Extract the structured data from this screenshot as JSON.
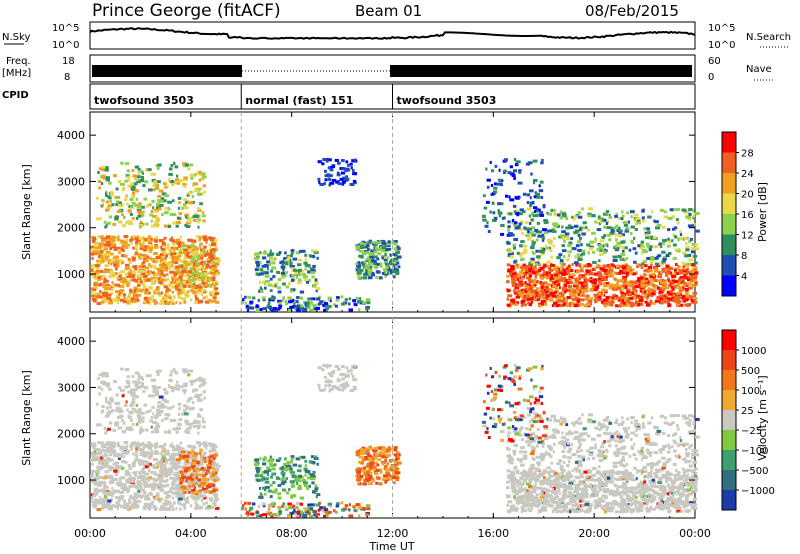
{
  "header": {
    "title": "Prince George (fitACF)",
    "beam": "Beam 01",
    "date": "08/Feb/2015"
  },
  "strip_labels": {
    "nsky": "N.Sky",
    "nsky_hi": "10^5",
    "nsky_lo": "10^0",
    "nsearch": "N.Search",
    "freq": "Freq.",
    "freq_unit": "[MHz]",
    "freq_hi": "18",
    "freq_lo": "8",
    "nave": "Nave",
    "nave_hi": "60",
    "nave_lo": "0",
    "cpid": "CPID"
  },
  "cpid_segments": [
    {
      "label": "twofsound 3503",
      "start_h": 0,
      "end_h": 6
    },
    {
      "label": "normal (fast) 151",
      "start_h": 6,
      "end_h": 12
    },
    {
      "label": "twofsound 3503",
      "start_h": 12,
      "end_h": 24
    }
  ],
  "colors": {
    "power_scale": [
      "#0000ff",
      "#1f4fb4",
      "#2f8f5f",
      "#8cd14e",
      "#e8d84a",
      "#f0a020",
      "#f06020",
      "#ff0000"
    ],
    "velocity_scale": [
      "#1e3ca8",
      "#2f6f80",
      "#3f9f6f",
      "#80c840",
      "#c8c8c0",
      "#f0a830",
      "#f07818",
      "#ee4418",
      "#ff0000"
    ],
    "ground_scatter": "#c8c8c0"
  },
  "chart_data": [
    {
      "type": "heatmap",
      "title": "",
      "xlabel": "",
      "ylabel": "Slant Range [km]",
      "xlim": [
        0,
        24
      ],
      "ylim": [
        180,
        4500
      ],
      "x_ticks": [
        "00:00",
        "04:00",
        "08:00",
        "12:00",
        "16:00",
        "20:00",
        "00:00"
      ],
      "y_ticks": [
        "1000",
        "2000",
        "3000",
        "4000"
      ],
      "colorbar": {
        "label": "Power [dB]",
        "ticks": [
          "4",
          "8",
          "12",
          "16",
          "20",
          "24",
          "28"
        ],
        "range": [
          0,
          30
        ]
      }
    },
    {
      "type": "heatmap",
      "title": "",
      "xlabel": "Time UT",
      "ylabel": "Slant Range [km]",
      "xlim": [
        0,
        24
      ],
      "ylim": [
        180,
        4500
      ],
      "x_ticks": [
        "00:00",
        "04:00",
        "08:00",
        "12:00",
        "16:00",
        "20:00",
        "00:00"
      ],
      "y_ticks": [
        "1000",
        "2000",
        "3000",
        "4000"
      ],
      "colorbar": {
        "label": "Velocity [m s⁻¹]",
        "ticks": [
          "1000",
          "500",
          "100",
          "25",
          "−25",
          "−100",
          "−500",
          "−1000"
        ]
      }
    }
  ]
}
